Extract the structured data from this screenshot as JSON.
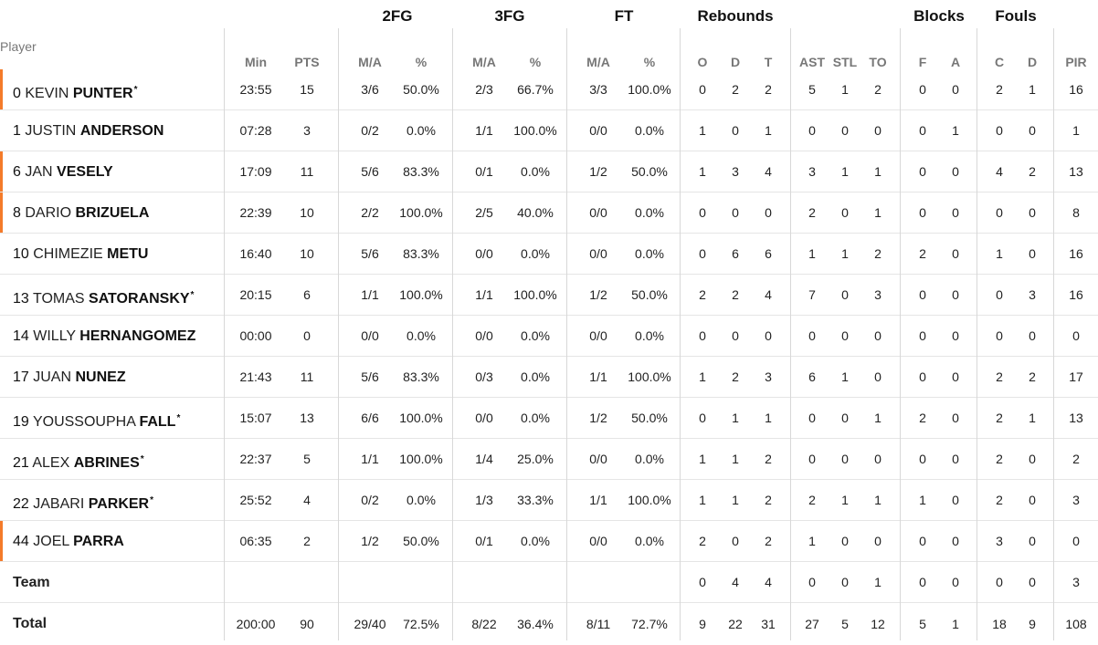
{
  "groups": [
    "2FG",
    "3FG",
    "FT",
    "Rebounds",
    "Blocks",
    "Fouls"
  ],
  "player_header": "Player",
  "subheaders": [
    "Min",
    "PTS",
    "M/A",
    "%",
    "M/A",
    "%",
    "M/A",
    "%",
    "O",
    "D",
    "T",
    "AST",
    "STL",
    "TO",
    "F",
    "A",
    "C",
    "D",
    "PIR"
  ],
  "players": [
    {
      "num": "0",
      "first": "KEVIN",
      "last": "PUNTER",
      "starter": true,
      "star": "*",
      "stats": [
        "23:55",
        "15",
        "3/6",
        "50.0%",
        "2/3",
        "66.7%",
        "3/3",
        "100.0%",
        "0",
        "2",
        "2",
        "5",
        "1",
        "2",
        "0",
        "0",
        "2",
        "1",
        "16"
      ]
    },
    {
      "num": "1",
      "first": "JUSTIN",
      "last": "ANDERSON",
      "starter": false,
      "star": "",
      "stats": [
        "07:28",
        "3",
        "0/2",
        "0.0%",
        "1/1",
        "100.0%",
        "0/0",
        "0.0%",
        "1",
        "0",
        "1",
        "0",
        "0",
        "0",
        "0",
        "1",
        "0",
        "0",
        "1"
      ]
    },
    {
      "num": "6",
      "first": "JAN",
      "last": "VESELY",
      "starter": true,
      "star": "",
      "stats": [
        "17:09",
        "11",
        "5/6",
        "83.3%",
        "0/1",
        "0.0%",
        "1/2",
        "50.0%",
        "1",
        "3",
        "4",
        "3",
        "1",
        "1",
        "0",
        "0",
        "4",
        "2",
        "13"
      ]
    },
    {
      "num": "8",
      "first": "DARIO",
      "last": "BRIZUELA",
      "starter": true,
      "star": "",
      "stats": [
        "22:39",
        "10",
        "2/2",
        "100.0%",
        "2/5",
        "40.0%",
        "0/0",
        "0.0%",
        "0",
        "0",
        "0",
        "2",
        "0",
        "1",
        "0",
        "0",
        "0",
        "0",
        "8"
      ]
    },
    {
      "num": "10",
      "first": "CHIMEZIE",
      "last": "METU",
      "starter": false,
      "star": "",
      "stats": [
        "16:40",
        "10",
        "5/6",
        "83.3%",
        "0/0",
        "0.0%",
        "0/0",
        "0.0%",
        "0",
        "6",
        "6",
        "1",
        "1",
        "2",
        "2",
        "0",
        "1",
        "0",
        "16"
      ]
    },
    {
      "num": "13",
      "first": "TOMAS",
      "last": "SATORANSKY",
      "starter": false,
      "star": "*",
      "stats": [
        "20:15",
        "6",
        "1/1",
        "100.0%",
        "1/1",
        "100.0%",
        "1/2",
        "50.0%",
        "2",
        "2",
        "4",
        "7",
        "0",
        "3",
        "0",
        "0",
        "0",
        "3",
        "16"
      ]
    },
    {
      "num": "14",
      "first": "WILLY",
      "last": "HERNANGOMEZ",
      "starter": false,
      "star": "",
      "stats": [
        "00:00",
        "0",
        "0/0",
        "0.0%",
        "0/0",
        "0.0%",
        "0/0",
        "0.0%",
        "0",
        "0",
        "0",
        "0",
        "0",
        "0",
        "0",
        "0",
        "0",
        "0",
        "0"
      ]
    },
    {
      "num": "17",
      "first": "JUAN",
      "last": "NUNEZ",
      "starter": false,
      "star": "",
      "stats": [
        "21:43",
        "11",
        "5/6",
        "83.3%",
        "0/3",
        "0.0%",
        "1/1",
        "100.0%",
        "1",
        "2",
        "3",
        "6",
        "1",
        "0",
        "0",
        "0",
        "2",
        "2",
        "17"
      ]
    },
    {
      "num": "19",
      "first": "YOUSSOUPHA",
      "last": "FALL",
      "starter": false,
      "star": "*",
      "stats": [
        "15:07",
        "13",
        "6/6",
        "100.0%",
        "0/0",
        "0.0%",
        "1/2",
        "50.0%",
        "0",
        "1",
        "1",
        "0",
        "0",
        "1",
        "2",
        "0",
        "2",
        "1",
        "13"
      ]
    },
    {
      "num": "21",
      "first": "ALEX",
      "last": "ABRINES",
      "starter": false,
      "star": "*",
      "stats": [
        "22:37",
        "5",
        "1/1",
        "100.0%",
        "1/4",
        "25.0%",
        "0/0",
        "0.0%",
        "1",
        "1",
        "2",
        "0",
        "0",
        "0",
        "0",
        "0",
        "2",
        "0",
        "2"
      ]
    },
    {
      "num": "22",
      "first": "JABARI",
      "last": "PARKER",
      "starter": false,
      "star": "*",
      "stats": [
        "25:52",
        "4",
        "0/2",
        "0.0%",
        "1/3",
        "33.3%",
        "1/1",
        "100.0%",
        "1",
        "1",
        "2",
        "2",
        "1",
        "1",
        "1",
        "0",
        "2",
        "0",
        "3"
      ]
    },
    {
      "num": "44",
      "first": "JOEL",
      "last": "PARRA",
      "starter": true,
      "star": "",
      "stats": [
        "06:35",
        "2",
        "1/2",
        "50.0%",
        "0/1",
        "0.0%",
        "0/0",
        "0.0%",
        "2",
        "0",
        "2",
        "1",
        "0",
        "0",
        "0",
        "0",
        "3",
        "0",
        "0"
      ]
    }
  ],
  "team": {
    "label": "Team",
    "stats": [
      "",
      "",
      "",
      "",
      "",
      "",
      "",
      "",
      "0",
      "4",
      "4",
      "0",
      "0",
      "1",
      "0",
      "0",
      "0",
      "0",
      "3"
    ]
  },
  "total": {
    "label": "Total",
    "stats": [
      "200:00",
      "90",
      "29/40",
      "72.5%",
      "8/22",
      "36.4%",
      "8/11",
      "72.7%",
      "9",
      "22",
      "31",
      "27",
      "5",
      "12",
      "5",
      "1",
      "18",
      "9",
      "108"
    ]
  },
  "colors": {
    "accent": "#f47b2a",
    "grid": "#d8d8d8",
    "subheader": "#777777"
  }
}
